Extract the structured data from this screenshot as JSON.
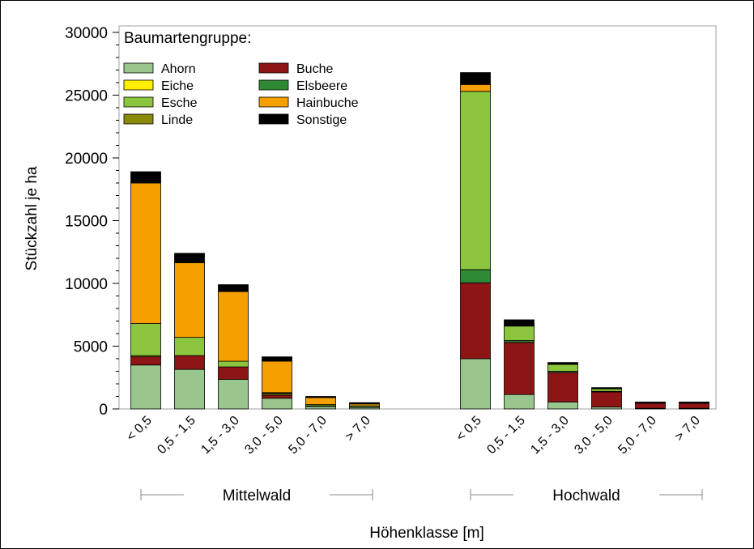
{
  "chart_data": {
    "type": "bar",
    "stacked": true,
    "ylabel": "Stückzahl je ha",
    "xlabel": "Höhenklasse [m]",
    "ylim": [
      0,
      30000
    ],
    "yticks": [
      "0",
      "5000",
      "10000",
      "15000",
      "20000",
      "25000",
      "30000"
    ],
    "legend": {
      "title": "Baumartengruppe:",
      "placement": "top-left"
    },
    "species": [
      {
        "name": "Ahorn",
        "color": "#98c68c"
      },
      {
        "name": "Buche",
        "color": "#8e1515"
      },
      {
        "name": "Eiche",
        "color": "#ffee00"
      },
      {
        "name": "Elsbeere",
        "color": "#2e8a35"
      },
      {
        "name": "Esche",
        "color": "#8cc63e"
      },
      {
        "name": "Hainbuche",
        "color": "#f5a000"
      },
      {
        "name": "Linde",
        "color": "#8a8a0a"
      },
      {
        "name": "Sonstige",
        "color": "#000000"
      }
    ],
    "stack_order": [
      "Ahorn",
      "Buche",
      "Linde",
      "Eiche",
      "Elsbeere",
      "Esche",
      "Hainbuche",
      "Sonstige"
    ],
    "groups": [
      {
        "name": "Mittelwald",
        "categories": [
          "< 0,5",
          "0,5 - 1,5",
          "1,5 - 3,0",
          "3,0 - 5,0",
          "5,0 - 7,0",
          "> 7,0"
        ],
        "series": [
          {
            "name": "Ahorn",
            "values": [
              3500,
              3150,
              2350,
              850,
              200,
              120
            ]
          },
          {
            "name": "Buche",
            "values": [
              650,
              1100,
              1000,
              250,
              50,
              30
            ]
          },
          {
            "name": "Linde",
            "values": [
              100,
              0,
              0,
              120,
              0,
              0
            ]
          },
          {
            "name": "Eiche",
            "values": [
              0,
              0,
              0,
              30,
              0,
              0
            ]
          },
          {
            "name": "Elsbeere",
            "values": [
              0,
              0,
              0,
              0,
              0,
              0
            ]
          },
          {
            "name": "Esche",
            "values": [
              2550,
              1450,
              450,
              50,
              100,
              100
            ]
          },
          {
            "name": "Hainbuche",
            "values": [
              11200,
              5950,
              5550,
              2500,
              550,
              150
            ]
          },
          {
            "name": "Sonstige",
            "values": [
              900,
              750,
              550,
              350,
              100,
              100
            ]
          }
        ]
      },
      {
        "name": "Hochwald",
        "categories": [
          "< 0,5",
          "0,5 - 1,5",
          "1,5 - 3,0",
          "3,0 - 5,0",
          "5,0 - 7,0",
          "> 7,0"
        ],
        "series": [
          {
            "name": "Ahorn",
            "values": [
              4000,
              1150,
              550,
              150,
              50,
              50
            ]
          },
          {
            "name": "Buche",
            "values": [
              6050,
              4150,
              2350,
              1200,
              400,
              400
            ]
          },
          {
            "name": "Linde",
            "values": [
              0,
              0,
              0,
              0,
              0,
              0
            ]
          },
          {
            "name": "Eiche",
            "values": [
              0,
              0,
              0,
              0,
              0,
              0
            ]
          },
          {
            "name": "Elsbeere",
            "values": [
              1050,
              150,
              100,
              50,
              0,
              0
            ]
          },
          {
            "name": "Esche",
            "values": [
              14200,
              1150,
              550,
              200,
              50,
              50
            ]
          },
          {
            "name": "Hainbuche",
            "values": [
              550,
              50,
              0,
              0,
              0,
              0
            ]
          },
          {
            "name": "Sonstige",
            "values": [
              950,
              450,
              150,
              100,
              50,
              50
            ]
          }
        ]
      }
    ]
  }
}
